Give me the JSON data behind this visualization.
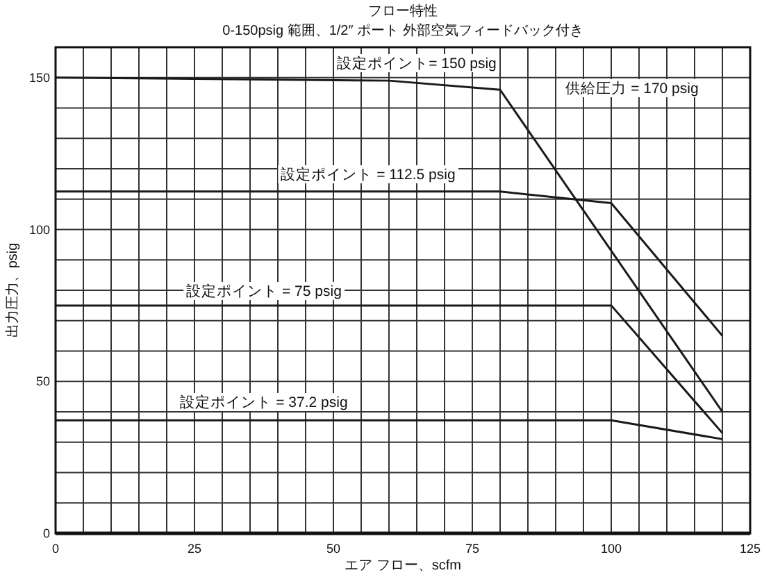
{
  "chart_data": {
    "type": "line",
    "title": "フロー特性",
    "subtitle": "0-150psig 範囲、1/2″ ポート 外部空気フィードバック付き",
    "xlabel": "エア フロー、scfm",
    "ylabel": "出力圧力、psig",
    "xlim": [
      0,
      125
    ],
    "ylim": [
      0,
      160
    ],
    "xticks": [
      0,
      {
        "value": 5,
        "label": null
      },
      {
        "value": 10,
        "label": null
      },
      {
        "value": 15,
        "label": null
      },
      {
        "value": 20,
        "label": null
      },
      25,
      {
        "value": 30,
        "label": null
      },
      {
        "value": 35,
        "label": null
      },
      {
        "value": 40,
        "label": null
      },
      {
        "value": 45,
        "label": null
      },
      50,
      {
        "value": 55,
        "label": null
      },
      {
        "value": 60,
        "label": null
      },
      {
        "value": 65,
        "label": null
      },
      {
        "value": 70,
        "label": null
      },
      75,
      {
        "value": 80,
        "label": null
      },
      {
        "value": 85,
        "label": null
      },
      {
        "value": 90,
        "label": null
      },
      {
        "value": 95,
        "label": null
      },
      100,
      {
        "value": 105,
        "label": null
      },
      {
        "value": 110,
        "label": null
      },
      {
        "value": 115,
        "label": null
      },
      {
        "value": 120,
        "label": null
      },
      125
    ],
    "yticks": [
      0,
      {
        "value": 10,
        "label": null
      },
      {
        "value": 20,
        "label": null
      },
      {
        "value": 30,
        "label": null
      },
      {
        "value": 40,
        "label": null
      },
      50,
      {
        "value": 60,
        "label": null
      },
      {
        "value": 70,
        "label": null
      },
      {
        "value": 80,
        "label": null
      },
      {
        "value": 90,
        "label": null
      },
      100,
      {
        "value": 110,
        "label": null
      },
      {
        "value": 120,
        "label": null
      },
      {
        "value": 130,
        "label": null
      },
      {
        "value": 140,
        "label": null
      },
      150,
      {
        "value": 160,
        "label": null
      }
    ],
    "grid": true,
    "line_style": "solid",
    "series": [
      {
        "color": "#1a1a1a",
        "x": [
          0,
          60,
          80,
          120
        ],
        "values": [
          150,
          149,
          146,
          40
        ]
      },
      {
        "color": "#1a1a1a",
        "x": [
          0,
          80,
          100,
          120
        ],
        "values": [
          112.5,
          112.5,
          108.7,
          65
        ]
      },
      {
        "color": "#1a1a1a",
        "x": [
          0,
          100,
          120
        ],
        "values": [
          75,
          75,
          33
        ]
      },
      {
        "color": "#1a1a1a",
        "x": [
          0,
          100,
          120
        ],
        "values": [
          37.2,
          37.2,
          31
        ]
      }
    ],
    "annotations": [
      "設定ポイント= 150 psig",
      "設定ポイント = 112.5 psig",
      "設定ポイント = 75 psig",
      "設定ポイント = 37.2 psig",
      "供給圧力 = 170 psig"
    ]
  }
}
